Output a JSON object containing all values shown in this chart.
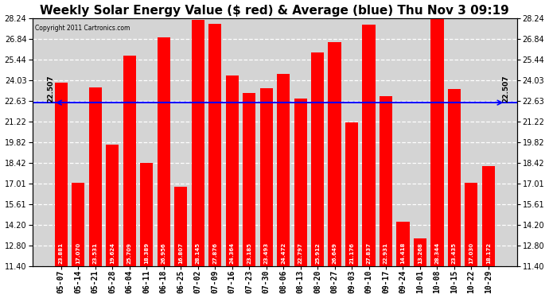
{
  "title": "Weekly Solar Energy Value ($ red) & Average (blue) Thu Nov 3 09:19",
  "copyright": "Copyright 2011 Cartronics.com",
  "average_value": 22.507,
  "average_label": "22.507",
  "bar_color": "#ff0000",
  "avg_line_color": "#0000ff",
  "background_color": "#ffffff",
  "plot_bg_color": "#d4d4d4",
  "categories": [
    "05-07",
    "05-14",
    "05-21",
    "05-28",
    "06-04",
    "06-11",
    "06-18",
    "06-25",
    "07-02",
    "07-09",
    "07-16",
    "07-23",
    "07-30",
    "08-06",
    "08-13",
    "08-20",
    "08-27",
    "09-03",
    "09-10",
    "09-17",
    "09-24",
    "10-01",
    "10-08",
    "10-15",
    "10-22",
    "10-29"
  ],
  "values": [
    23.881,
    17.07,
    23.531,
    19.624,
    25.709,
    18.389,
    26.956,
    16.807,
    28.145,
    27.876,
    24.364,
    23.185,
    23.493,
    24.472,
    22.797,
    25.912,
    26.649,
    21.176,
    27.837,
    22.931,
    14.418,
    13.268,
    28.344,
    23.435,
    17.03,
    18.172
  ],
  "ylim_min": 11.4,
  "ylim_max": 28.24,
  "yticks": [
    11.4,
    12.8,
    14.2,
    15.61,
    17.01,
    18.42,
    19.82,
    21.22,
    22.63,
    24.03,
    25.44,
    26.84,
    28.24
  ],
  "grid_color": "#ffffff",
  "title_fontsize": 11,
  "tick_fontsize": 7,
  "bar_width": 0.75
}
